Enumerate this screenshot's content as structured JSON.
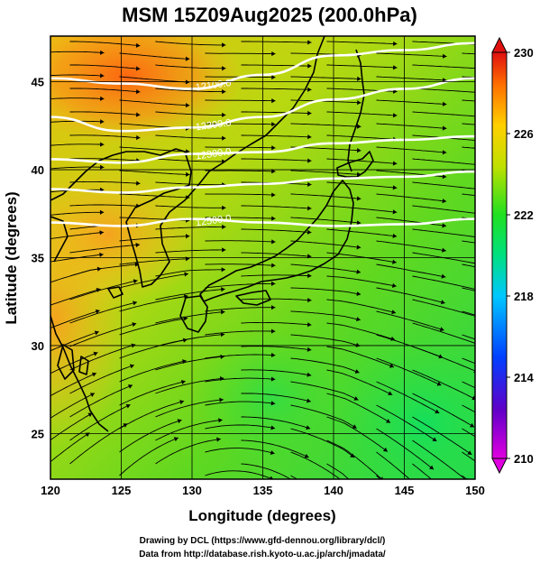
{
  "title": "MSM 15Z09Aug2025 (200.0hPa)",
  "xlabel": "Longitude (degrees)",
  "ylabel": "Latitude  (degrees)",
  "credits": {
    "line1": "Drawing by DCL (https://www.gfd-dennou.org/library/dcl/)",
    "line2": "Data from http://database.rish.kyoto-u.ac.jp/arch/jmadata/"
  },
  "chart_data": {
    "type": "heatmap",
    "xlim": [
      120,
      150
    ],
    "ylim": [
      22.4,
      47.6
    ],
    "xticks": [
      120,
      125,
      130,
      135,
      140,
      145,
      150
    ],
    "yticks": [
      25,
      30,
      35,
      40,
      45
    ],
    "grid": true,
    "colorbar": {
      "min": 210,
      "max": 230,
      "ticks": [
        210,
        214,
        218,
        222,
        226,
        230
      ],
      "colors": [
        "#e000e0",
        "#4000c0",
        "#0050ff",
        "#00d0ff",
        "#00e070",
        "#30e020",
        "#c0e000",
        "#ffd000",
        "#ff7000",
        "#e01010"
      ]
    },
    "contours": [
      {
        "label": "12100.0",
        "lat_at_lon": [
          [
            120,
            45.2
          ],
          [
            125,
            44.9
          ],
          [
            130,
            44.6
          ],
          [
            135,
            45.4
          ],
          [
            140,
            46.5
          ],
          [
            145,
            46.8
          ],
          [
            150,
            47.2
          ]
        ]
      },
      {
        "label": "12200.0",
        "lat_at_lon": [
          [
            120,
            43.0
          ],
          [
            125,
            42.2
          ],
          [
            130,
            42.4
          ],
          [
            135,
            43.0
          ],
          [
            140,
            44.0
          ],
          [
            145,
            44.6
          ],
          [
            150,
            45.2
          ]
        ]
      },
      {
        "label": "12300.0",
        "lat_at_lon": [
          [
            120,
            40.6
          ],
          [
            125,
            40.4
          ],
          [
            130,
            40.9
          ],
          [
            135,
            41.0
          ],
          [
            140,
            41.5
          ],
          [
            145,
            41.7
          ],
          [
            150,
            41.9
          ]
        ]
      },
      {
        "label": "",
        "lat_at_lon": [
          [
            120,
            38.9
          ],
          [
            125,
            38.7
          ],
          [
            130,
            39.0
          ],
          [
            135,
            39.2
          ],
          [
            140,
            39.5
          ],
          [
            145,
            39.6
          ],
          [
            150,
            39.9
          ]
        ]
      },
      {
        "label": "12500.0",
        "lat_at_lon": [
          [
            120,
            37.0
          ],
          [
            125,
            36.8
          ],
          [
            130,
            37.2
          ],
          [
            135,
            37.0
          ],
          [
            140,
            36.8
          ],
          [
            145,
            36.9
          ],
          [
            150,
            37.2
          ]
        ]
      }
    ]
  }
}
